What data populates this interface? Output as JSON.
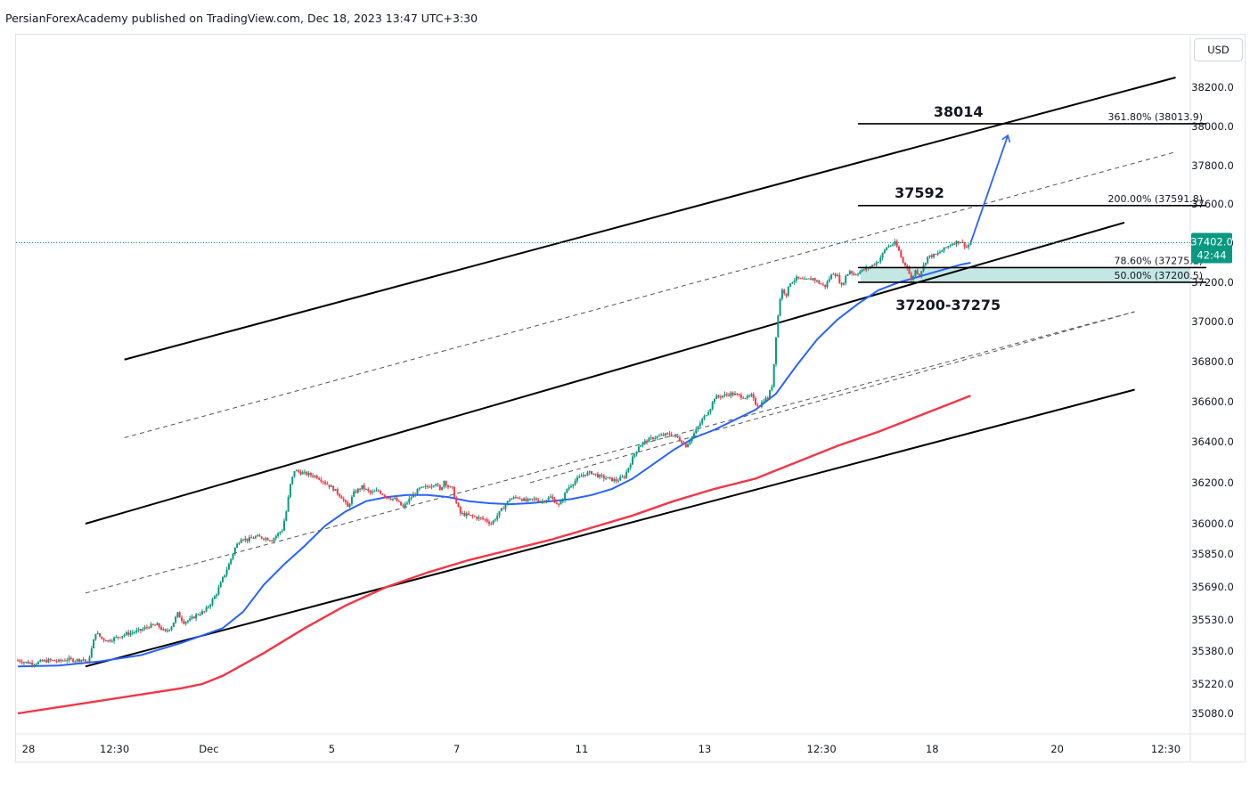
{
  "header": {
    "text": "PersianForexAcademy published on TradingView.com, Dec 18, 2023 13:47 UTC+3:30"
  },
  "currency_button": "USD",
  "price_tag": {
    "price": "37402.0",
    "countdown": "42:44",
    "bg_color": "#089981"
  },
  "annotations": {
    "target_high": "38014",
    "target_mid": "37592",
    "zone": "37200-37275"
  },
  "colors": {
    "candle_up": "#089981",
    "candle_down": "#f23645",
    "ma_fast": "#2962ff",
    "ma_slow": "#f23645",
    "zone_fill": "#b2dfdb",
    "arrow": "#2962ff"
  },
  "chart_data": {
    "type": "candlestick",
    "title": "",
    "xlabel": "",
    "ylabel": "",
    "currency": "USD",
    "last_price": 37402.0,
    "ylim": [
      35000,
      38300
    ],
    "y_ticks": [
      "38200.0",
      "38000.0",
      "37800.0",
      "37600.0",
      "37400.0",
      "37200.0",
      "37000.0",
      "36800.0",
      "36600.0",
      "36400.0",
      "36200.0",
      "36000.0",
      "35850.0",
      "35690.0",
      "35530.0",
      "35380.0",
      "35220.0",
      "35080.0"
    ],
    "y_tick_values": [
      38200,
      38000,
      37800,
      37600,
      37400,
      37200,
      37000,
      36800,
      36600,
      36400,
      36200,
      36000,
      35850,
      35690,
      35530,
      35380,
      35220,
      35080
    ],
    "x_ticks": [
      "28",
      "12:30",
      "Dec",
      "5",
      "7",
      "11",
      "13",
      "12:30",
      "18",
      "20",
      "12:30"
    ],
    "x_tick_index": [
      0,
      42,
      88,
      148,
      209,
      270,
      330,
      387,
      441,
      502,
      555
    ],
    "close_path": [
      [
        0,
        35335
      ],
      [
        4,
        35325
      ],
      [
        8,
        35320
      ],
      [
        12,
        35330
      ],
      [
        16,
        35335
      ],
      [
        20,
        35330
      ],
      [
        24,
        35340
      ],
      [
        28,
        35335
      ],
      [
        32,
        35340
      ],
      [
        34,
        35320
      ],
      [
        36,
        35390
      ],
      [
        38,
        35470
      ],
      [
        41,
        35440
      ],
      [
        44,
        35430
      ],
      [
        48,
        35445
      ],
      [
        52,
        35460
      ],
      [
        56,
        35470
      ],
      [
        60,
        35480
      ],
      [
        64,
        35500
      ],
      [
        68,
        35505
      ],
      [
        72,
        35470
      ],
      [
        75,
        35500
      ],
      [
        78,
        35560
      ],
      [
        81,
        35520
      ],
      [
        84,
        35530
      ],
      [
        88,
        35560
      ],
      [
        91,
        35570
      ],
      [
        94,
        35610
      ],
      [
        97,
        35660
      ],
      [
        100,
        35730
      ],
      [
        103,
        35800
      ],
      [
        106,
        35880
      ],
      [
        109,
        35930
      ],
      [
        112,
        35920
      ],
      [
        116,
        35935
      ],
      [
        120,
        35930
      ],
      [
        124,
        35920
      ],
      [
        126,
        35940
      ],
      [
        129,
        35970
      ],
      [
        131,
        36060
      ],
      [
        133,
        36190
      ],
      [
        135,
        36260
      ],
      [
        138,
        36250
      ],
      [
        142,
        36240
      ],
      [
        146,
        36230
      ],
      [
        150,
        36200
      ],
      [
        154,
        36170
      ],
      [
        158,
        36130
      ],
      [
        161,
        36080
      ],
      [
        164,
        36150
      ],
      [
        168,
        36180
      ],
      [
        172,
        36150
      ],
      [
        176,
        36160
      ],
      [
        180,
        36130
      ],
      [
        184,
        36120
      ],
      [
        188,
        36080
      ],
      [
        192,
        36130
      ],
      [
        196,
        36170
      ],
      [
        200,
        36180
      ],
      [
        204,
        36200
      ],
      [
        206,
        36160
      ],
      [
        208,
        36210
      ],
      [
        210,
        36180
      ],
      [
        212,
        36170
      ],
      [
        214,
        36100
      ],
      [
        216,
        36050
      ],
      [
        220,
        36040
      ],
      [
        224,
        36030
      ],
      [
        228,
        36020
      ],
      [
        231,
        36000
      ],
      [
        234,
        36040
      ],
      [
        237,
        36080
      ],
      [
        240,
        36120
      ],
      [
        244,
        36130
      ],
      [
        248,
        36110
      ],
      [
        252,
        36120
      ],
      [
        256,
        36110
      ],
      [
        260,
        36130
      ],
      [
        264,
        36090
      ],
      [
        266,
        36120
      ],
      [
        268,
        36170
      ],
      [
        272,
        36210
      ],
      [
        276,
        36240
      ],
      [
        280,
        36250
      ],
      [
        284,
        36230
      ],
      [
        288,
        36220
      ],
      [
        292,
        36210
      ],
      [
        296,
        36230
      ],
      [
        300,
        36320
      ],
      [
        303,
        36380
      ],
      [
        306,
        36400
      ],
      [
        310,
        36420
      ],
      [
        314,
        36430
      ],
      [
        318,
        36440
      ],
      [
        322,
        36420
      ],
      [
        326,
        36380
      ],
      [
        330,
        36440
      ],
      [
        334,
        36510
      ],
      [
        338,
        36570
      ],
      [
        340,
        36620
      ],
      [
        344,
        36630
      ],
      [
        348,
        36640
      ],
      [
        352,
        36630
      ],
      [
        356,
        36620
      ],
      [
        358,
        36630
      ],
      [
        360,
        36590
      ],
      [
        362,
        36580
      ],
      [
        364,
        36610
      ],
      [
        366,
        36620
      ],
      [
        368,
        36680
      ],
      [
        369,
        36790
      ],
      [
        370,
        36930
      ],
      [
        371,
        37030
      ],
      [
        372,
        37120
      ],
      [
        373,
        37160
      ],
      [
        375,
        37140
      ],
      [
        377,
        37200
      ],
      [
        380,
        37220
      ],
      [
        384,
        37210
      ],
      [
        388,
        37220
      ],
      [
        392,
        37190
      ],
      [
        394,
        37180
      ],
      [
        396,
        37220
      ],
      [
        398,
        37250
      ],
      [
        400,
        37230
      ],
      [
        402,
        37180
      ],
      [
        404,
        37230
      ],
      [
        406,
        37260
      ],
      [
        408,
        37240
      ],
      [
        412,
        37260
      ],
      [
        416,
        37280
      ],
      [
        420,
        37310
      ],
      [
        424,
        37380
      ],
      [
        428,
        37400
      ],
      [
        430,
        37360
      ],
      [
        432,
        37300
      ],
      [
        434,
        37280
      ],
      [
        436,
        37210
      ],
      [
        438,
        37260
      ],
      [
        440,
        37240
      ],
      [
        444,
        37330
      ],
      [
        448,
        37340
      ],
      [
        452,
        37370
      ],
      [
        456,
        37400
      ],
      [
        460,
        37410
      ],
      [
        463,
        37380
      ],
      [
        465,
        37402
      ]
    ],
    "series": [
      {
        "name": "",
        "style": "moving-average-fast",
        "values": [
          [
            0,
            35305
          ],
          [
            20,
            35310
          ],
          [
            40,
            35330
          ],
          [
            60,
            35360
          ],
          [
            80,
            35420
          ],
          [
            100,
            35490
          ],
          [
            110,
            35570
          ],
          [
            120,
            35700
          ],
          [
            130,
            35800
          ],
          [
            140,
            35890
          ],
          [
            150,
            35990
          ],
          [
            160,
            36060
          ],
          [
            170,
            36110
          ],
          [
            180,
            36130
          ],
          [
            190,
            36140
          ],
          [
            200,
            36140
          ],
          [
            210,
            36130
          ],
          [
            220,
            36110
          ],
          [
            230,
            36100
          ],
          [
            240,
            36095
          ],
          [
            250,
            36100
          ],
          [
            260,
            36110
          ],
          [
            270,
            36120
          ],
          [
            280,
            36140
          ],
          [
            290,
            36170
          ],
          [
            300,
            36220
          ],
          [
            310,
            36290
          ],
          [
            320,
            36360
          ],
          [
            330,
            36420
          ],
          [
            340,
            36460
          ],
          [
            350,
            36510
          ],
          [
            360,
            36560
          ],
          [
            370,
            36640
          ],
          [
            380,
            36780
          ],
          [
            390,
            36910
          ],
          [
            400,
            37010
          ],
          [
            410,
            37090
          ],
          [
            420,
            37160
          ],
          [
            430,
            37200
          ],
          [
            440,
            37230
          ],
          [
            450,
            37260
          ],
          [
            460,
            37290
          ],
          [
            465,
            37300
          ]
        ]
      },
      {
        "name": "",
        "style": "moving-average-slow",
        "values": [
          [
            0,
            35080
          ],
          [
            20,
            35110
          ],
          [
            40,
            35140
          ],
          [
            60,
            35170
          ],
          [
            80,
            35200
          ],
          [
            90,
            35220
          ],
          [
            100,
            35260
          ],
          [
            120,
            35370
          ],
          [
            140,
            35490
          ],
          [
            160,
            35600
          ],
          [
            180,
            35690
          ],
          [
            200,
            35760
          ],
          [
            220,
            35820
          ],
          [
            240,
            35870
          ],
          [
            260,
            35920
          ],
          [
            280,
            35980
          ],
          [
            300,
            36040
          ],
          [
            320,
            36110
          ],
          [
            340,
            36170
          ],
          [
            360,
            36220
          ],
          [
            380,
            36300
          ],
          [
            400,
            36380
          ],
          [
            420,
            36450
          ],
          [
            440,
            36530
          ],
          [
            460,
            36610
          ],
          [
            465,
            36630
          ]
        ]
      }
    ],
    "levels": [
      {
        "label": "361.80% (38013.9)",
        "value": 38013.9,
        "from": 410,
        "to": 580
      },
      {
        "label": "200.00% (37591.8)",
        "value": 37591.8,
        "from": 410,
        "to": 580
      },
      {
        "label": "78.60% (37275.1)",
        "value": 37275.1,
        "from": 410,
        "to": 580
      },
      {
        "label": "50.00% (37200.5)",
        "value": 37200.5,
        "from": 410,
        "to": 580
      }
    ],
    "zone": {
      "from_value": 37200.5,
      "to_value": 37275.1,
      "from": 410,
      "to": 580
    },
    "channel": {
      "upper": [
        [
          52,
          36810
        ],
        [
          565,
          38250
        ]
      ],
      "mid": [
        [
          33,
          36000
        ],
        [
          540,
          37505
        ]
      ],
      "lower": [
        [
          33,
          35305
        ],
        [
          545,
          36660
        ]
      ],
      "dashed": [
        [
          [
            52,
            36420
          ],
          [
            565,
            37870
          ]
        ],
        [
          [
            33,
            35660
          ],
          [
            545,
            37050
          ]
        ],
        [
          [
            250,
            36200
          ],
          [
            545,
            37050
          ]
        ]
      ]
    },
    "forecast_arrow": [
      [
        465,
        37402
      ],
      [
        483,
        37950
      ]
    ],
    "legend": ""
  }
}
